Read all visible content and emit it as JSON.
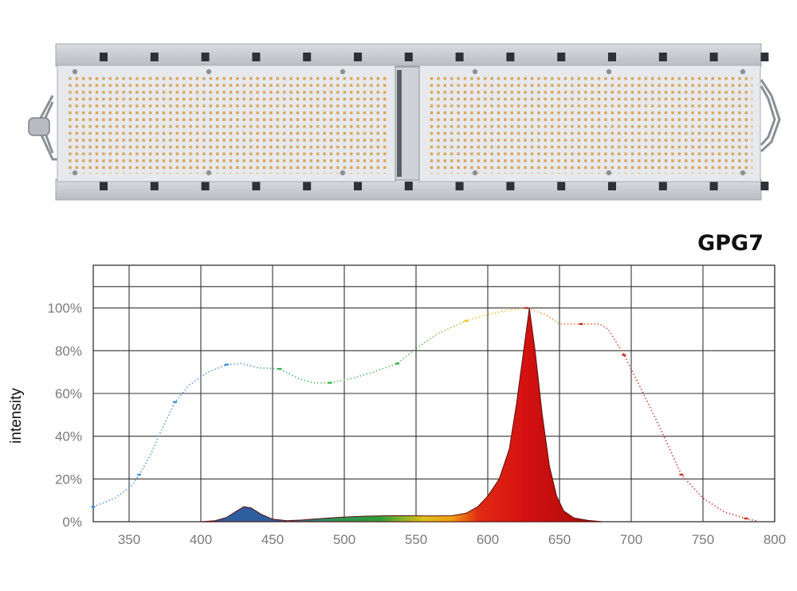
{
  "product": {
    "name": "GPG7",
    "icon": "led-grow-light-fixture"
  },
  "chart_data": {
    "type": "area",
    "title": "GPG7",
    "xlabel": "",
    "ylabel": "intensity",
    "xlim": [
      325,
      800
    ],
    "ylim": [
      0,
      1.2
    ],
    "x_ticks": [
      350,
      400,
      450,
      500,
      550,
      600,
      650,
      700,
      750,
      800
    ],
    "x_tick_labels": [
      "350",
      "400",
      "450",
      "500",
      "550",
      "600",
      "650",
      "700",
      "750",
      "800"
    ],
    "y_ticks": [
      0,
      0.2,
      0.4,
      0.6,
      0.8,
      1.0
    ],
    "y_tick_labels": [
      "0%",
      "20%",
      "40%",
      "60%",
      "80%",
      "100%"
    ],
    "grid": true,
    "legend": "none",
    "series": [
      {
        "style": "dotted-line",
        "colors": [
          "#4a8fd8",
          "#39b54a",
          "#f3c21a",
          "#c0392b"
        ],
        "points": [
          [
            325,
            0.07
          ],
          [
            340,
            0.11
          ],
          [
            352,
            0.17
          ],
          [
            357,
            0.22
          ],
          [
            364,
            0.3
          ],
          [
            372,
            0.42
          ],
          [
            382,
            0.56
          ],
          [
            392,
            0.64
          ],
          [
            405,
            0.7
          ],
          [
            418,
            0.735
          ],
          [
            428,
            0.74
          ],
          [
            440,
            0.72
          ],
          [
            455,
            0.715
          ],
          [
            468,
            0.67
          ],
          [
            478,
            0.65
          ],
          [
            490,
            0.65
          ],
          [
            505,
            0.67
          ],
          [
            520,
            0.7
          ],
          [
            537,
            0.74
          ],
          [
            550,
            0.81
          ],
          [
            565,
            0.88
          ],
          [
            585,
            0.94
          ],
          [
            600,
            0.97
          ],
          [
            615,
            0.99
          ],
          [
            627,
            1.0
          ],
          [
            640,
            0.97
          ],
          [
            650,
            0.925
          ],
          [
            665,
            0.925
          ],
          [
            678,
            0.925
          ],
          [
            684,
            0.9
          ],
          [
            695,
            0.78
          ],
          [
            707,
            0.62
          ],
          [
            720,
            0.44
          ],
          [
            735,
            0.22
          ],
          [
            750,
            0.11
          ],
          [
            765,
            0.045
          ],
          [
            780,
            0.015
          ],
          [
            787,
            0.005
          ]
        ]
      },
      {
        "style": "filled-area",
        "colors": [
          "#2d5e9e",
          "#2f9b3a",
          "#e8c21a",
          "#f07a12",
          "#e01414",
          "#b30e0e"
        ],
        "points": [
          [
            400,
            0.0
          ],
          [
            410,
            0.005
          ],
          [
            418,
            0.02
          ],
          [
            425,
            0.05
          ],
          [
            430,
            0.07
          ],
          [
            435,
            0.065
          ],
          [
            442,
            0.035
          ],
          [
            450,
            0.012
          ],
          [
            460,
            0.005
          ],
          [
            470,
            0.008
          ],
          [
            480,
            0.013
          ],
          [
            490,
            0.018
          ],
          [
            500,
            0.022
          ],
          [
            515,
            0.026
          ],
          [
            530,
            0.028
          ],
          [
            545,
            0.028
          ],
          [
            560,
            0.027
          ],
          [
            575,
            0.028
          ],
          [
            585,
            0.04
          ],
          [
            593,
            0.07
          ],
          [
            600,
            0.12
          ],
          [
            608,
            0.2
          ],
          [
            615,
            0.34
          ],
          [
            620,
            0.55
          ],
          [
            625,
            0.8
          ],
          [
            629,
            1.0
          ],
          [
            633,
            0.8
          ],
          [
            638,
            0.5
          ],
          [
            643,
            0.26
          ],
          [
            648,
            0.12
          ],
          [
            653,
            0.05
          ],
          [
            660,
            0.018
          ],
          [
            670,
            0.006
          ],
          [
            680,
            0.0
          ]
        ]
      }
    ]
  }
}
